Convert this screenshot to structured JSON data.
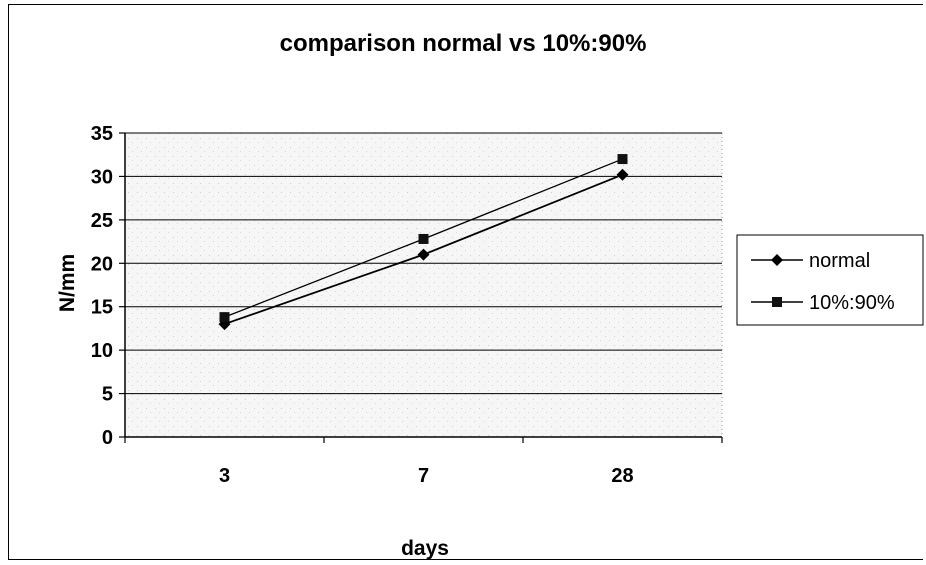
{
  "chart_data": {
    "type": "line",
    "title": "comparison normal vs 10%:90%",
    "xlabel": "days",
    "ylabel": "N/mm",
    "categories": [
      "3",
      "7",
      "28"
    ],
    "series": [
      {
        "name": "normal",
        "values": [
          13,
          21,
          30.2
        ],
        "marker": "diamond"
      },
      {
        "name": "10%:90%",
        "values": [
          13.8,
          22.8,
          32
        ],
        "marker": "square"
      }
    ],
    "ylim": [
      0,
      35
    ],
    "yticks": [
      0,
      5,
      10,
      15,
      20,
      25,
      30,
      35
    ],
    "grid": true,
    "legend": "right",
    "colors": {
      "line": "#000000",
      "plot_bg": "#f4f4f4",
      "grid": "#000000"
    }
  }
}
